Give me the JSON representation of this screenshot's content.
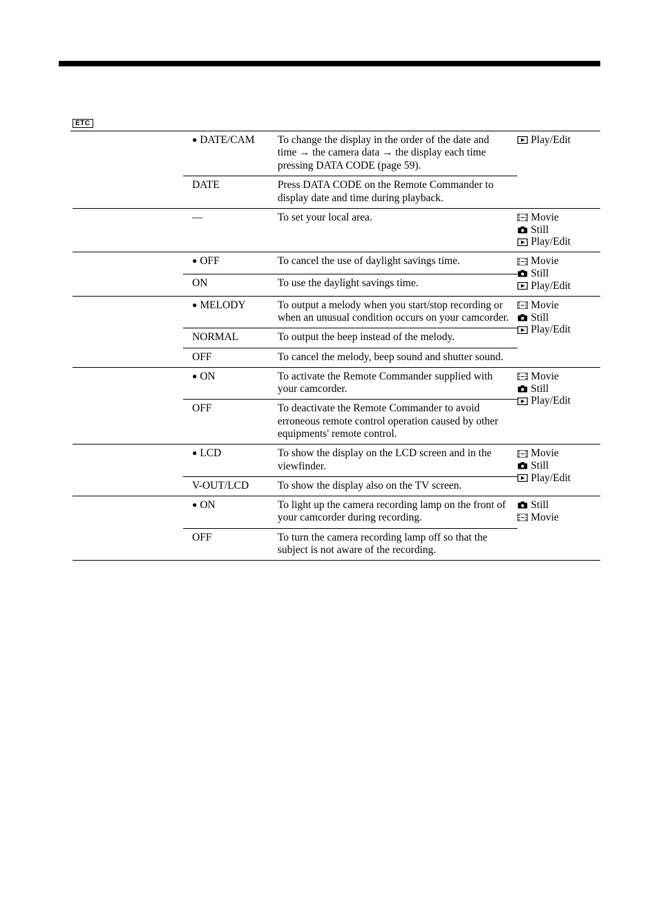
{
  "header": {
    "etc_badge": "ETC"
  },
  "icons": {
    "movie": "movie-icon",
    "still": "still-icon",
    "play": "play-icon"
  },
  "modes": {
    "movie": "Movie",
    "still": "Still",
    "play_edit": "Play/Edit"
  },
  "rows": [
    {
      "settings": [
        {
          "label": "DATE/CAM",
          "default": true,
          "desc_parts": [
            "To change the display in the order of the date and time ",
            "→",
            " the camera data ",
            "→",
            " the display each time pressing DATA CODE (page 59)."
          ]
        },
        {
          "label": "DATE",
          "default": false,
          "desc": "Press DATA CODE on the Remote Commander to display date and time during playback."
        }
      ],
      "modes": [
        "play_edit"
      ]
    },
    {
      "settings": [
        {
          "label": "—",
          "default": false,
          "desc": "To set your local area."
        }
      ],
      "modes": [
        "movie",
        "still",
        "play_edit"
      ]
    },
    {
      "settings": [
        {
          "label": "OFF",
          "default": true,
          "desc": "To cancel the use of daylight savings time."
        },
        {
          "label": "ON",
          "default": false,
          "desc": "To use the daylight savings time."
        }
      ],
      "modes": [
        "movie",
        "still",
        "play_edit"
      ]
    },
    {
      "settings": [
        {
          "label": "MELODY",
          "default": true,
          "desc": "To output a melody when you start/stop recording or when an unusual condition occurs on your camcorder."
        },
        {
          "label": "NORMAL",
          "default": false,
          "desc": "To output the beep instead of the melody."
        },
        {
          "label": "OFF",
          "default": false,
          "desc": "To cancel the melody, beep sound and shutter sound."
        }
      ],
      "modes": [
        "movie",
        "still",
        "play_edit"
      ]
    },
    {
      "settings": [
        {
          "label": "ON",
          "default": true,
          "desc": "To activate the Remote Commander supplied with your camcorder."
        },
        {
          "label": "OFF",
          "default": false,
          "desc": "To deactivate the Remote Commander to avoid erroneous remote control operation caused by other equipments' remote control."
        }
      ],
      "modes": [
        "movie",
        "still",
        "play_edit"
      ]
    },
    {
      "settings": [
        {
          "label": "LCD",
          "default": true,
          "desc": "To show the display on the LCD screen and in the viewfinder."
        },
        {
          "label": "V-OUT/LCD",
          "default": false,
          "desc": "To show the display also on the TV screen."
        }
      ],
      "modes": [
        "movie",
        "still",
        "play_edit"
      ]
    },
    {
      "settings": [
        {
          "label": "ON",
          "default": true,
          "desc": "To light up the camera recording lamp on the front of your camcorder during recording."
        },
        {
          "label": "OFF",
          "default": false,
          "desc": "To turn the camera recording lamp off so that the subject is not aware of the recording."
        }
      ],
      "modes": [
        "still",
        "movie"
      ]
    }
  ]
}
